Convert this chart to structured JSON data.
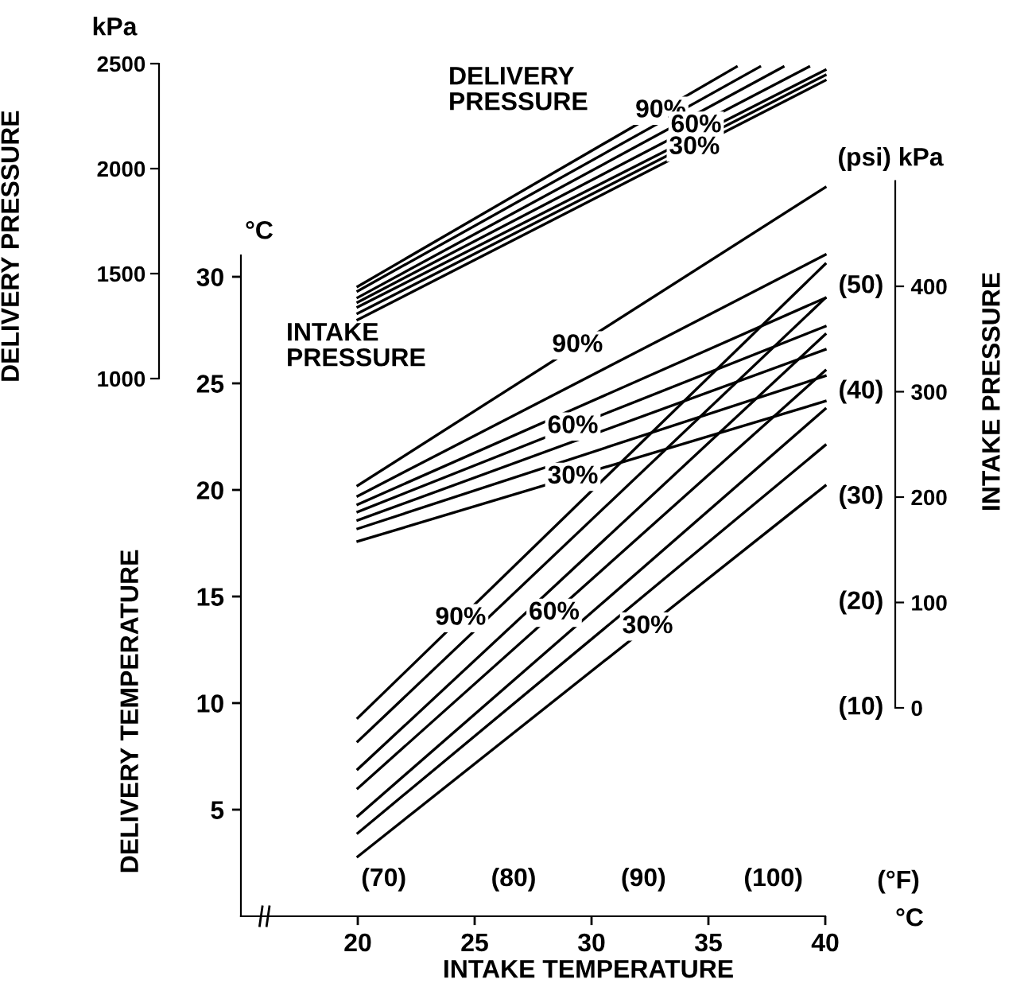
{
  "chart_data": {
    "type": "line",
    "xlabel": "INTAKE TEMPERATURE",
    "ylabel": "DELIVERY TEMPERATURE",
    "y2label": "INTAKE PRESSURE",
    "y3label": "DELIVERY PRESSURE",
    "x2label": "(°F)",
    "xlim": [
      15,
      40
    ],
    "xticks": [
      20,
      25,
      30,
      35,
      40
    ],
    "x2lim": [
      59,
      104
    ],
    "x2ticks": [
      {
        "value": 70,
        "label": "(70)"
      },
      {
        "value": 80,
        "label": "(80)"
      },
      {
        "value": 90,
        "label": "(90)"
      },
      {
        "value": 100,
        "label": "(100)"
      }
    ],
    "ylim": [
      0,
      31
    ],
    "yticks": [
      5,
      10,
      15,
      20,
      25,
      30
    ],
    "y2lim": [
      0,
      500
    ],
    "y2ticks": [
      0,
      100,
      200,
      300,
      400
    ],
    "y3lim": [
      1000,
      2500
    ],
    "y3ticks": [
      1000,
      1500,
      2000,
      2500
    ],
    "grid": false,
    "legend": false,
    "marker": "none",
    "line_style": "solid",
    "annotations": [
      "kPa",
      "°C",
      "(psi) kPa",
      "°C",
      "DELIVERY\nPRESSURE",
      "INTAKE\nPRESSURE",
      "(10)",
      "(20)",
      "(30)",
      "(40)",
      "(50)"
    ],
    "series": [
      {
        "name": "90%",
        "axis": "y3",
        "color": "#000000",
        "x": [
          20,
          36.2
        ],
        "values": [
          1439,
          2485
        ]
      },
      {
        "axis": "y3",
        "color": "#000000",
        "x": [
          20,
          37.2
        ],
        "values": [
          1417,
          2485
        ]
      },
      {
        "axis": "y3",
        "color": "#000000",
        "x": [
          20,
          38.2
        ],
        "values": [
          1386,
          2485
        ]
      },
      {
        "name": "60%",
        "axis": "y3",
        "color": "#000000",
        "x": [
          20,
          39.3
        ],
        "values": [
          1364,
          2485
        ]
      },
      {
        "axis": "y3",
        "color": "#000000",
        "x": [
          20,
          40
        ],
        "values": [
          1341,
          2470
        ]
      },
      {
        "axis": "y3",
        "color": "#000000",
        "x": [
          20,
          40
        ],
        "values": [
          1311,
          2445
        ]
      },
      {
        "name": "30%",
        "axis": "y3",
        "color": "#000000",
        "x": [
          20,
          40
        ],
        "values": [
          1280,
          2420
        ]
      },
      {
        "name": "90%",
        "axis": "y2",
        "color": "#000000",
        "x": [
          20,
          40
        ],
        "values": [
          211,
          494
        ]
      },
      {
        "axis": "y2",
        "color": "#000000",
        "x": [
          20,
          40
        ],
        "values": [
          201,
          430
        ]
      },
      {
        "axis": "y2",
        "color": "#000000",
        "x": [
          20,
          40
        ],
        "values": [
          193,
          389
        ]
      },
      {
        "name": "60%",
        "axis": "y2",
        "color": "#000000",
        "x": [
          20,
          40
        ],
        "values": [
          186,
          362
        ]
      },
      {
        "axis": "y2",
        "color": "#000000",
        "x": [
          20,
          40
        ],
        "values": [
          178,
          340
        ]
      },
      {
        "axis": "y2",
        "color": "#000000",
        "x": [
          20,
          40
        ],
        "values": [
          170,
          315
        ]
      },
      {
        "name": "30%",
        "axis": "y2",
        "color": "#000000",
        "x": [
          20,
          40
        ],
        "values": [
          158,
          291
        ]
      },
      {
        "name": "90%",
        "axis": "y",
        "color": "#000000",
        "x": [
          20,
          40
        ],
        "values": [
          9.3,
          30.6
        ]
      },
      {
        "axis": "y",
        "color": "#000000",
        "x": [
          20,
          40
        ],
        "values": [
          8.2,
          29.0
        ]
      },
      {
        "axis": "y",
        "color": "#000000",
        "x": [
          20,
          40
        ],
        "values": [
          6.9,
          27.3
        ]
      },
      {
        "name": "60%",
        "axis": "y",
        "color": "#000000",
        "x": [
          20,
          40
        ],
        "values": [
          6.0,
          25.6
        ]
      },
      {
        "axis": "y",
        "color": "#000000",
        "x": [
          20,
          40
        ],
        "values": [
          4.7,
          23.8
        ]
      },
      {
        "axis": "y",
        "color": "#000000",
        "x": [
          20,
          40
        ],
        "values": [
          3.9,
          22.1
        ]
      },
      {
        "name": "30%",
        "axis": "y",
        "color": "#000000",
        "x": [
          20,
          40
        ],
        "values": [
          2.8,
          20.2
        ]
      }
    ]
  }
}
